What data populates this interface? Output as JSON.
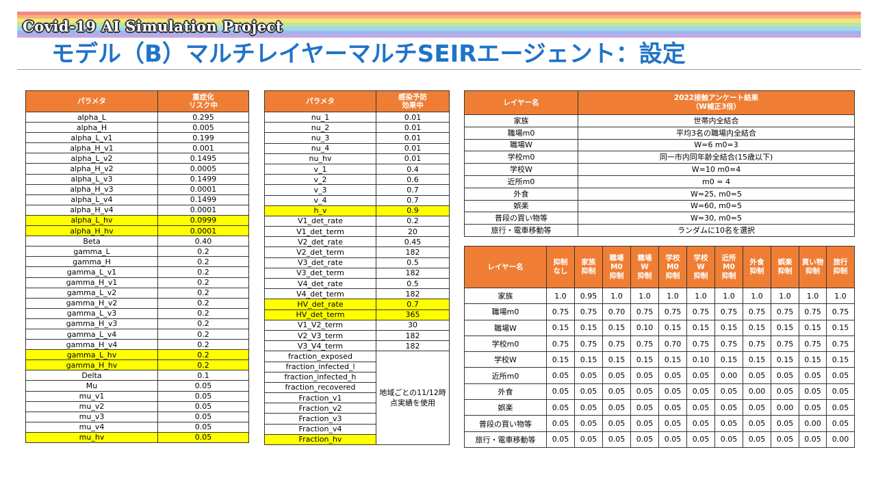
{
  "header": {
    "project": "Covid-19 AI Simulation Project",
    "title": "モデル（B）マルチレイヤーマルチSEIRエージェント：設定"
  },
  "table1": {
    "headers": [
      "パラメタ",
      "重症化\nリスク中"
    ],
    "rows": [
      [
        "alpha_L",
        "0.295",
        false
      ],
      [
        "alpha_H",
        "0.005",
        false
      ],
      [
        "alpha_L_v1",
        "0.199",
        false
      ],
      [
        "alpha_H_v1",
        "0.001",
        false
      ],
      [
        "alpha_L_v2",
        "0.1495",
        false
      ],
      [
        "alpha_H_v2",
        "0.0005",
        false
      ],
      [
        "alpha_L_v3",
        "0.1499",
        false
      ],
      [
        "alpha_H_v3",
        "0.0001",
        false
      ],
      [
        "alpha_L_v4",
        "0.1499",
        false
      ],
      [
        "alpha_H_v4",
        "0.0001",
        false
      ],
      [
        "alpha_L_hv",
        "0.0999",
        true
      ],
      [
        "alpha_H_hv",
        "0.0001",
        true
      ],
      [
        "Beta",
        "0.40",
        false
      ],
      [
        "gamma_L",
        "0.2",
        false
      ],
      [
        "gamma_H",
        "0.2",
        false
      ],
      [
        "gamma_L_v1",
        "0.2",
        false
      ],
      [
        "gamma_H_v1",
        "0.2",
        false
      ],
      [
        "gamma_L_v2",
        "0.2",
        false
      ],
      [
        "gamma_H_v2",
        "0.2",
        false
      ],
      [
        "gamma_L_v3",
        "0.2",
        false
      ],
      [
        "gamma_H_v3",
        "0.2",
        false
      ],
      [
        "gamma_L_v4",
        "0.2",
        false
      ],
      [
        "gamma_H_v4",
        "0.2",
        false
      ],
      [
        "gamma_L_hv",
        "0.2",
        true
      ],
      [
        "gamma_H_hv",
        "0.2",
        true
      ],
      [
        "Delta",
        "0.1",
        false
      ],
      [
        "Mu",
        "0.05",
        false
      ],
      [
        "mu_v1",
        "0.05",
        false
      ],
      [
        "mu_v2",
        "0.05",
        false
      ],
      [
        "mu_v3",
        "0.05",
        false
      ],
      [
        "mu_v4",
        "0.05",
        false
      ],
      [
        "mu_hv",
        "0.05",
        true
      ]
    ]
  },
  "table2": {
    "headers": [
      "パラメタ",
      "感染予防\n効果中"
    ],
    "rows": [
      [
        "nu_1",
        "0.01",
        false
      ],
      [
        "nu_2",
        "0.01",
        false
      ],
      [
        "nu_3",
        "0.01",
        false
      ],
      [
        "nu_4",
        "0.01",
        false
      ],
      [
        "nu_hv",
        "0.01",
        false
      ],
      [
        "v_1",
        "0.4",
        false
      ],
      [
        "v_2",
        "0.6",
        false
      ],
      [
        "v_3",
        "0.7",
        false
      ],
      [
        "v_4",
        "0.7",
        false
      ],
      [
        "h_v",
        "0.9",
        true
      ],
      [
        "V1_det_rate",
        "0.2",
        false
      ],
      [
        "V1_det_term",
        "20",
        false
      ],
      [
        "V2_det_rate",
        "0.45",
        false
      ],
      [
        "V2_det_term",
        "182",
        false
      ],
      [
        "V3_det_rate",
        "0.5",
        false
      ],
      [
        "V3_det_term",
        "182",
        false
      ],
      [
        "V4_det_rate",
        "0.5",
        false
      ],
      [
        "V4_det_term",
        "182",
        false
      ],
      [
        "HV_det_rate",
        "0.7",
        true
      ],
      [
        "HV_det_term",
        "365",
        true
      ],
      [
        "V1_V2_term",
        "30",
        false
      ],
      [
        "V2_V3_term",
        "182",
        false
      ],
      [
        "V3_V4_term",
        "182",
        false
      ]
    ],
    "merged_rows": [
      [
        "fraction_exposed",
        false
      ],
      [
        "fraction_infected_l",
        false
      ],
      [
        "fraction_infected_h",
        false
      ],
      [
        "fraction_recovered",
        false
      ],
      [
        "Fraction_v1",
        false
      ],
      [
        "Fraction_v2",
        false
      ],
      [
        "Fraction_v3",
        false
      ],
      [
        "Fraction_v4",
        false
      ],
      [
        "Fraction_hv",
        true
      ]
    ],
    "merged_value": "地域ごとの11/12時点実績を使用"
  },
  "table3": {
    "headers": [
      "レイヤー名",
      "2022接触アンケート結果\n（W補正3倍）"
    ],
    "rows": [
      [
        "家族",
        "世帯内全結合"
      ],
      [
        "職場m0",
        "平均3名の職場内全結合"
      ],
      [
        "職場W",
        "W=6 m0=3"
      ],
      [
        "学校m0",
        "同一市内同年齢全結合(15歳以下)"
      ],
      [
        "学校W",
        "W=10 m0=4"
      ],
      [
        "近所m0",
        "m0 = 4"
      ],
      [
        "外食",
        "W=25, m0=5"
      ],
      [
        "娯楽",
        "W=60, m0=5"
      ],
      [
        "普段の買い物等",
        "W=30, m0=5"
      ],
      [
        "旅行・電車移動等",
        "ランダムに10名を選択"
      ]
    ]
  },
  "table4": {
    "headers": [
      "レイヤー名",
      "抑制\nなし",
      "家族\n抑制",
      "職場\nM0\n抑制",
      "職場\nW\n抑制",
      "学校\nM0\n抑制",
      "学校\nW\n抑制",
      "近所\nM0\n抑制",
      "外食\n抑制",
      "娯楽\n抑制",
      "買い物\n抑制",
      "旅行\n抑制"
    ],
    "rows": [
      [
        "家族",
        "1.0",
        "0.95",
        "1.0",
        "1.0",
        "1.0",
        "1.0",
        "1.0",
        "1.0",
        "1.0",
        "1.0",
        "1.0"
      ],
      [
        "職場m0",
        "0.75",
        "0.75",
        "0.70",
        "0.75",
        "0.75",
        "0.75",
        "0.75",
        "0.75",
        "0.75",
        "0.75",
        "0.75"
      ],
      [
        "職場W",
        "0.15",
        "0.15",
        "0.15",
        "0.10",
        "0.15",
        "0.15",
        "0.15",
        "0.15",
        "0.15",
        "0.15",
        "0.15"
      ],
      [
        "学校m0",
        "0.75",
        "0.75",
        "0.75",
        "0.75",
        "0.70",
        "0.75",
        "0.75",
        "0.75",
        "0.75",
        "0.75",
        "0.75"
      ],
      [
        "学校W",
        "0.15",
        "0.15",
        "0.15",
        "0.15",
        "0.15",
        "0.10",
        "0.15",
        "0.15",
        "0.15",
        "0.15",
        "0.15"
      ],
      [
        "近所m0",
        "0.05",
        "0.05",
        "0.05",
        "0.05",
        "0.05",
        "0.05",
        "0.00",
        "0.05",
        "0.05",
        "0.05",
        "0.05"
      ],
      [
        "外食",
        "0.05",
        "0.05",
        "0.05",
        "0.05",
        "0.05",
        "0.05",
        "0.05",
        "0.00",
        "0.05",
        "0.05",
        "0.05"
      ],
      [
        "娯楽",
        "0.05",
        "0.05",
        "0.05",
        "0.05",
        "0.05",
        "0.05",
        "0.05",
        "0.05",
        "0.00",
        "0.05",
        "0.05"
      ],
      [
        "普段の買い物等",
        "0.05",
        "0.05",
        "0.05",
        "0.05",
        "0.05",
        "0.05",
        "0.05",
        "0.05",
        "0.05",
        "0.00",
        "0.05"
      ],
      [
        "旅行・電車移動等",
        "0.05",
        "0.05",
        "0.05",
        "0.05",
        "0.05",
        "0.05",
        "0.05",
        "0.05",
        "0.05",
        "0.05",
        "0.00"
      ]
    ]
  }
}
